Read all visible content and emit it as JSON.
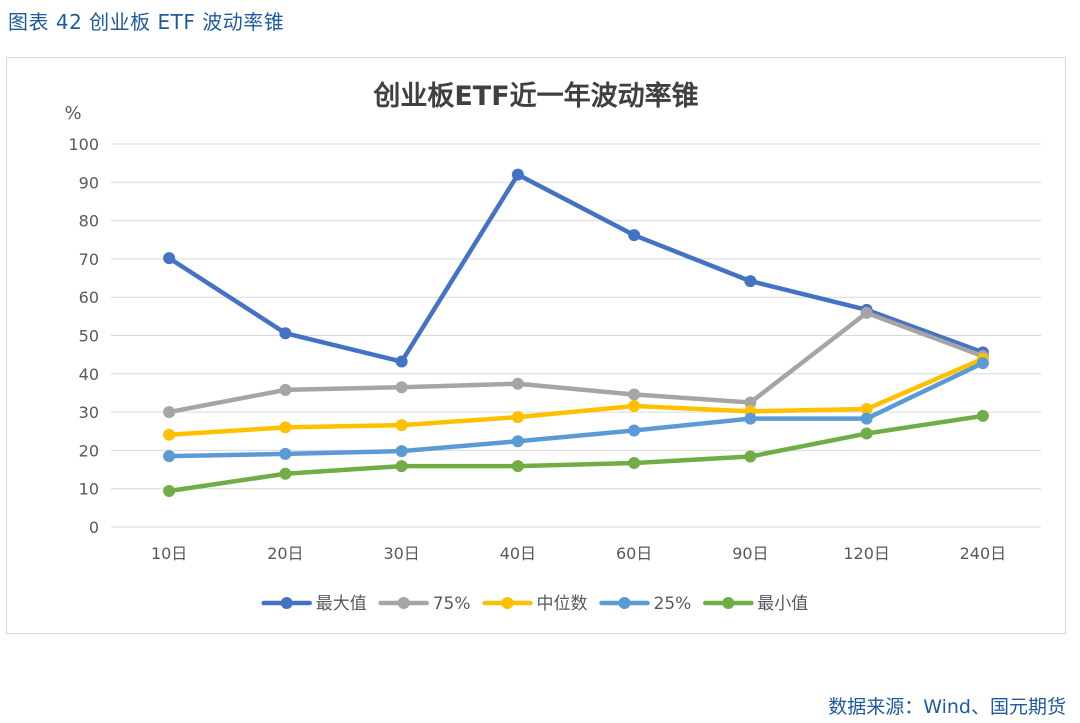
{
  "caption": "图表 42  创业板 ETF 波动率锥",
  "source": "数据来源：Wind、国元期货",
  "colors": {
    "series": [
      "#4472c4",
      "#a5a5a5",
      "#ffc000",
      "#5b9bd5",
      "#70ad47"
    ],
    "grid": "#d9d9d9",
    "axis_text": "#595959",
    "title": "#404040"
  },
  "chart_data": {
    "type": "line",
    "title": "创业板ETF近一年波动率锥",
    "ylabel": "%",
    "xlabel": "",
    "categories": [
      "10日",
      "20日",
      "30日",
      "40日",
      "60日",
      "90日",
      "120日",
      "240日"
    ],
    "ylim": [
      0,
      100
    ],
    "yticks": [
      0,
      10,
      20,
      30,
      40,
      50,
      60,
      70,
      80,
      90,
      100
    ],
    "grid": true,
    "legend": "bottom",
    "series": [
      {
        "name": "最大值",
        "values": [
          70.2,
          50.6,
          43.2,
          92.0,
          76.2,
          64.2,
          56.7,
          45.6
        ]
      },
      {
        "name": "75%",
        "values": [
          30.0,
          35.8,
          36.5,
          37.4,
          34.6,
          32.5,
          55.9,
          44.6
        ]
      },
      {
        "name": "中位数",
        "values": [
          24.1,
          26.0,
          26.6,
          28.7,
          31.6,
          30.2,
          30.8,
          43.9
        ]
      },
      {
        "name": "25%",
        "values": [
          18.5,
          19.1,
          19.8,
          22.4,
          25.2,
          28.3,
          28.3,
          42.8
        ]
      },
      {
        "name": "最小值",
        "values": [
          9.4,
          13.9,
          15.9,
          15.9,
          16.7,
          18.4,
          24.4,
          29.0
        ]
      }
    ]
  }
}
